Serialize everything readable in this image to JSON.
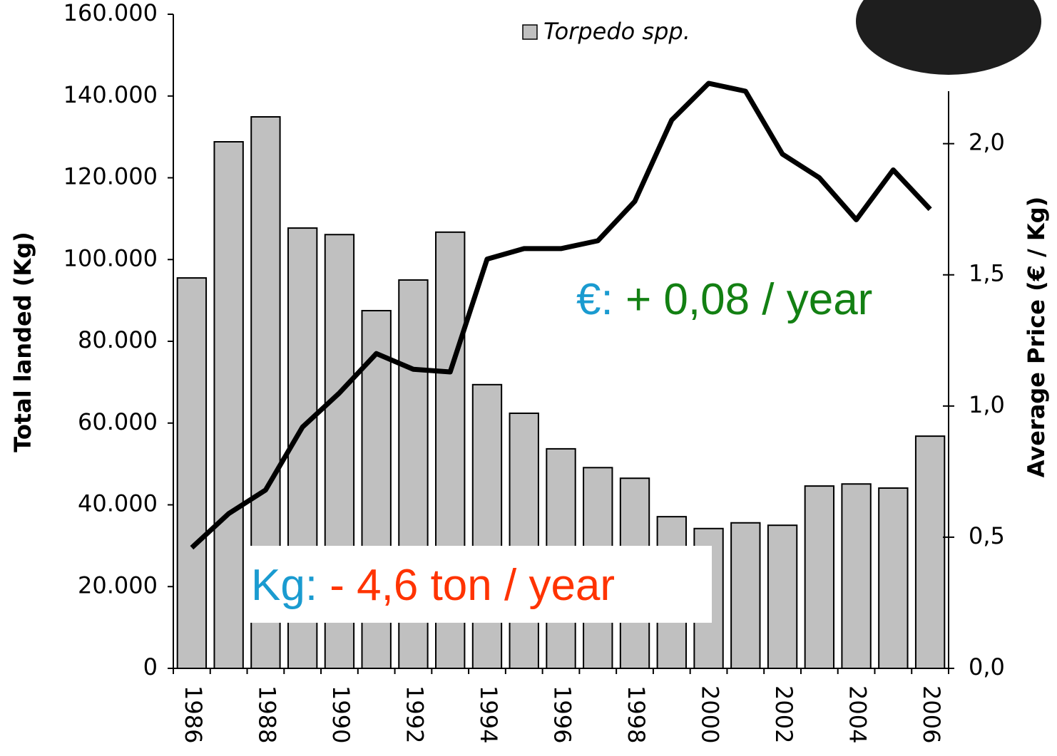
{
  "chart_data": {
    "type": "bar-line",
    "legend": "Torpedo spp.",
    "y_label": "Total landed (Kg)",
    "y2_label": "Average Price (€ / Kg)",
    "categories": [
      "1986",
      null,
      "1988",
      null,
      "1990",
      null,
      "1992",
      null,
      "1994",
      null,
      "1996",
      null,
      "1998",
      null,
      "2000",
      null,
      "2002",
      null,
      "2004",
      null,
      "2006"
    ],
    "series": [
      {
        "name": "Torpedo spp.",
        "color": "#c0c0c0",
        "type": "bar",
        "values": [
          95500,
          128800,
          134900,
          107700,
          106100,
          87500,
          95000,
          106700,
          69400,
          62400,
          53700,
          49100,
          46500,
          37100,
          34200,
          35600,
          35000,
          44600,
          45100,
          44100,
          56800
        ]
      },
      {
        "color": "#000000",
        "type": "line",
        "axis": "y2",
        "values": [
          0.46,
          0.59,
          0.68,
          0.92,
          1.05,
          1.2,
          1.14,
          1.13,
          1.56,
          1.6,
          1.6,
          1.63,
          1.78,
          2.09,
          2.23,
          2.2,
          1.96,
          1.87,
          1.71,
          1.9,
          1.75
        ]
      }
    ],
    "ylim": [
      0,
      160000
    ],
    "yticks": [
      0,
      {
        "value": 20000,
        "label": "20.000"
      },
      {
        "value": 40000,
        "label": "40.000"
      },
      {
        "value": 60000,
        "label": "60.000"
      },
      {
        "value": 80000,
        "label": "80.000"
      },
      {
        "value": 100000,
        "label": "100.000"
      },
      {
        "value": 120000,
        "label": "120.000"
      },
      {
        "value": 140000,
        "label": "140.000"
      },
      {
        "value": 160000,
        "label": "160.000"
      }
    ],
    "y2lim": [
      0,
      2.2
    ],
    "y2ticks": [
      {
        "value": 0,
        "label": "0,0"
      },
      {
        "value": 0.5,
        "label": "0,5"
      },
      {
        "value": 1,
        "label": "1,0"
      },
      {
        "value": 1.5,
        "label": "1,5"
      },
      {
        "value": 2,
        "label": "2,0"
      }
    ],
    "annotations": [
      {
        "parts": [
          {
            "text": "Kg:",
            "color": "#1a9bd0"
          },
          {
            "text": " - 4,6 ton / year",
            "color": "#ff3300"
          }
        ]
      },
      {
        "parts": [
          {
            "text": "€:",
            "color": "#1a9bd0"
          },
          {
            "text": " + 0,08 / year",
            "color": "#138013"
          }
        ]
      }
    ]
  }
}
